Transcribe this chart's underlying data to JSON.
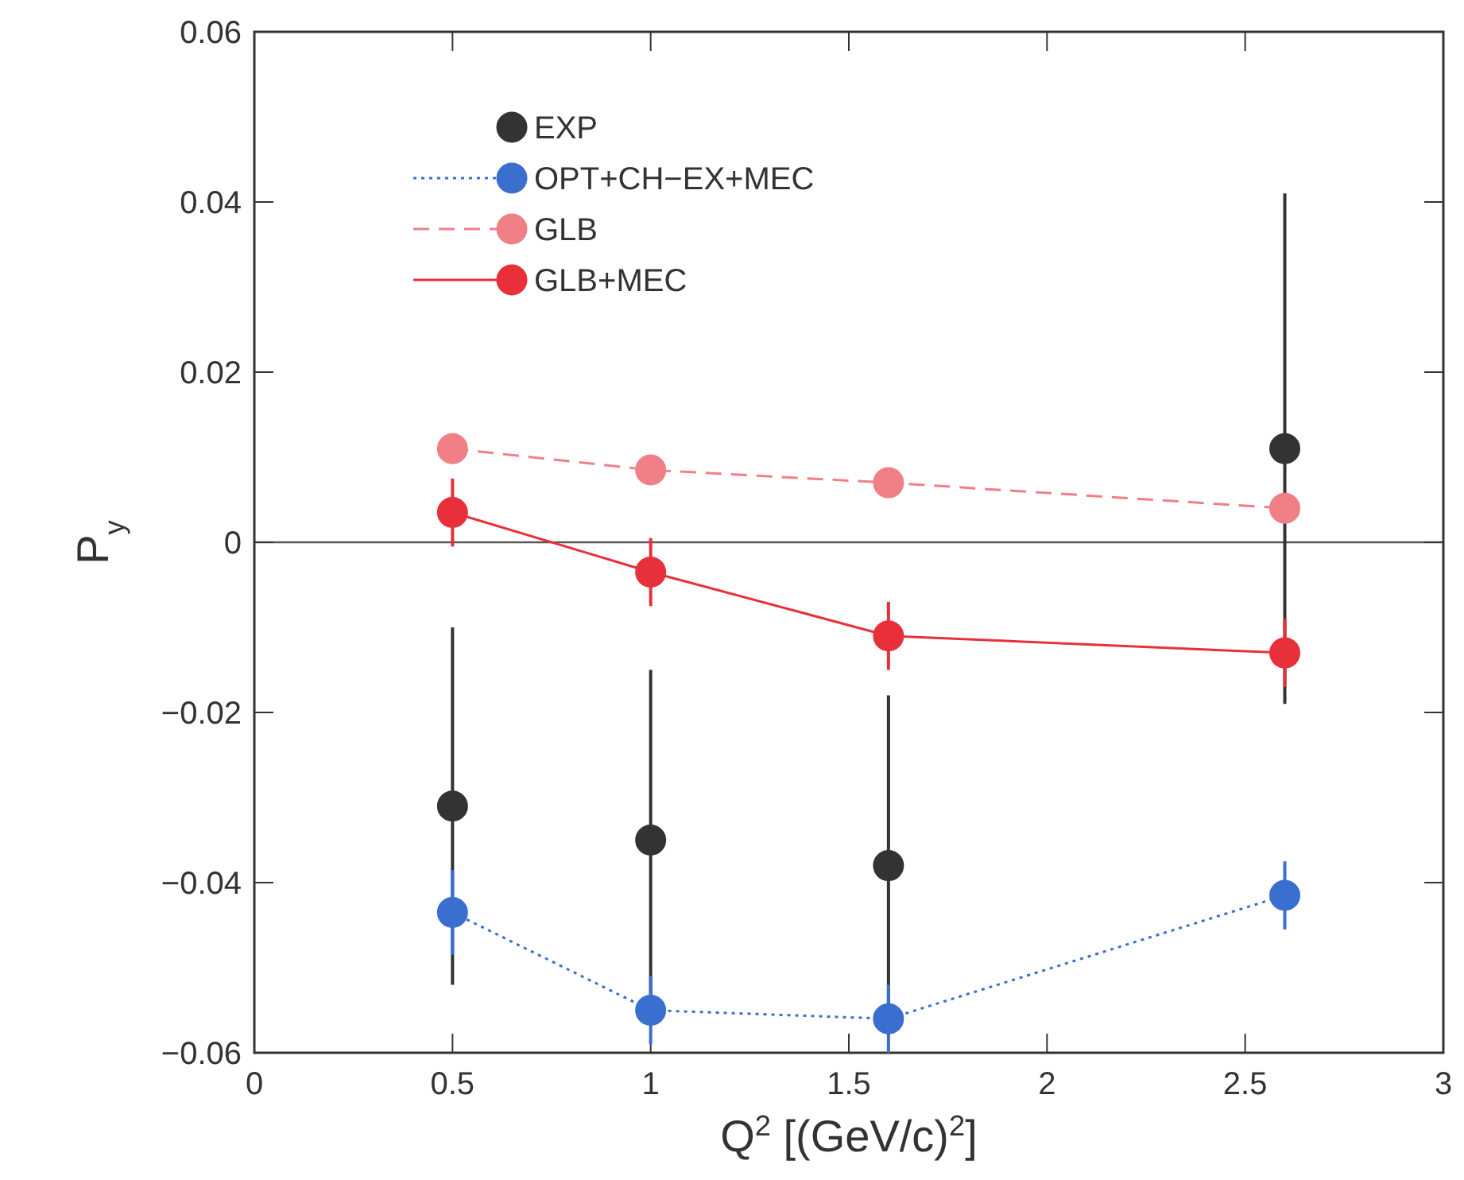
{
  "chart_data": {
    "type": "line",
    "xlabel": "Q$^{2}$ [(GeV/c)$^{2}$]",
    "ylabel": "P$_{y}$",
    "xlim": [
      0,
      3
    ],
    "xticks": [
      0,
      0.5,
      1,
      1.5,
      2,
      2.5,
      3
    ],
    "ylim": [
      -0.06,
      0.06
    ],
    "yticks": [
      {
        "value": -0.06,
        "label": "−0.06"
      },
      {
        "value": -0.04,
        "label": "−0.04"
      },
      {
        "value": -0.02,
        "label": "−0.02"
      },
      0,
      0.02,
      0.04,
      0.06
    ],
    "x": [
      0.5,
      1,
      1.6,
      2.6
    ],
    "legend": "top left",
    "marker": "circle",
    "grid": false,
    "ref_lines": [
      {
        "axis": "y",
        "value": 0,
        "color": "#555555"
      }
    ],
    "series": [
      {
        "name": "EXP",
        "type": "scatter",
        "color": "#333333",
        "values": [
          -0.031,
          -0.035,
          -0.038,
          0.011
        ],
        "errors": [
          0.021,
          0.02,
          0.02,
          0.03
        ]
      },
      {
        "name": "OPT+CH−EX+MEC",
        "color": "#3a6fd0",
        "line_style": "dotted",
        "values": [
          -0.0435,
          -0.055,
          -0.056,
          -0.0415
        ],
        "errors": [
          0.005,
          0.004,
          0.004,
          0.004
        ]
      },
      {
        "name": "GLB",
        "color": "#f07f86",
        "line_style": "dashed",
        "values": [
          0.011,
          0.0085,
          0.007,
          0.004
        ]
      },
      {
        "name": "GLB+MEC",
        "color": "#e8303a",
        "line_style": "solid",
        "values": [
          0.0035,
          -0.0035,
          -0.011,
          -0.013
        ],
        "errors": [
          0.004,
          0.004,
          0.004,
          0.004
        ]
      }
    ]
  }
}
